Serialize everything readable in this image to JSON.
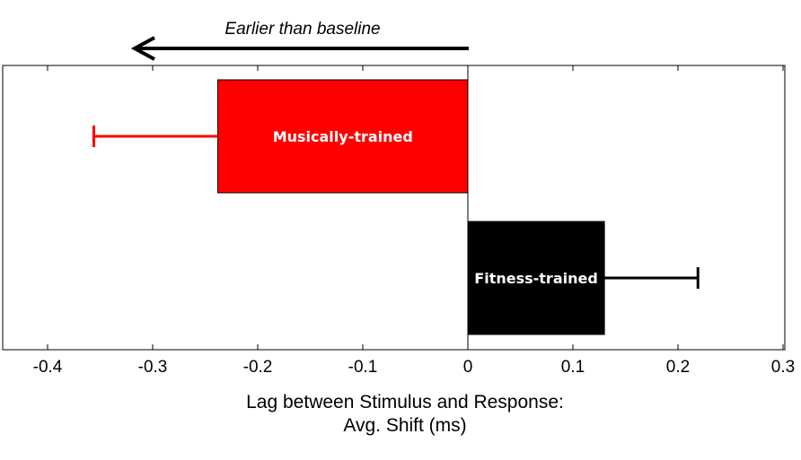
{
  "chart_data": {
    "type": "bar",
    "orientation": "horizontal",
    "categories": [
      "Musically-trained",
      "Fitness-trained"
    ],
    "values": [
      -0.238,
      0.13
    ],
    "errors": [
      0.118,
      0.089
    ],
    "colors": [
      "#ff0000",
      "#000000"
    ],
    "xlim": [
      -0.44,
      0.3
    ],
    "xticks": [
      -0.4,
      -0.3,
      -0.2,
      -0.1,
      0,
      0.1,
      0.2,
      0.3
    ],
    "xtick_labels": [
      "-0.4",
      "-0.3",
      "-0.2",
      "-0.1",
      "0",
      "0.1",
      "0.2",
      "0.3"
    ],
    "xlabel": [
      "Lag between Stimulus and Response:",
      "Avg. Shift (ms)"
    ],
    "annotation": "Earlier than baseline",
    "grid": false
  }
}
